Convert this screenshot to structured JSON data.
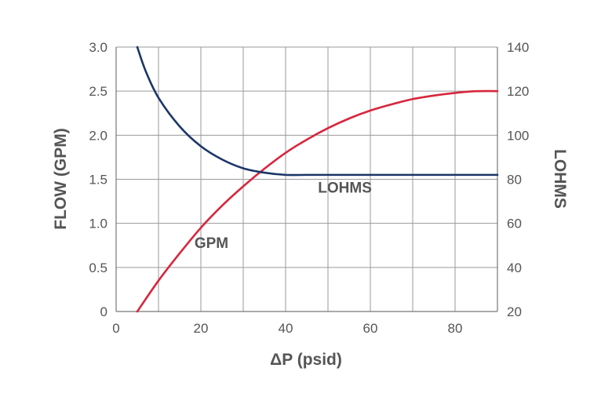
{
  "chart_data": {
    "type": "line",
    "xlabel": "ΔP (psid)",
    "ylabel": "FLOW (GPM)",
    "y2label": "LOHMS",
    "xlim": [
      0,
      90
    ],
    "ylim": [
      0,
      3.0
    ],
    "y2lim": [
      20,
      140
    ],
    "x_ticks": [
      "0",
      "20",
      "40",
      "60",
      "80"
    ],
    "y_ticks": [
      "0",
      "0.5",
      "1.0",
      "1.5",
      "2.0",
      "2.5",
      "3.0"
    ],
    "y2_ticks": [
      "20",
      "40",
      "60",
      "80",
      "100",
      "120",
      "140"
    ],
    "grid": true,
    "series": [
      {
        "name": "GPM",
        "axis": "left",
        "color": "#d7263d",
        "x": [
          5,
          10,
          15,
          20,
          25,
          30,
          35,
          40,
          45,
          50,
          55,
          60,
          65,
          70,
          75,
          80,
          85,
          90
        ],
        "y": [
          0.0,
          0.35,
          0.66,
          0.95,
          1.2,
          1.42,
          1.62,
          1.8,
          1.95,
          2.08,
          2.19,
          2.28,
          2.35,
          2.41,
          2.45,
          2.48,
          2.5,
          2.5
        ]
      },
      {
        "name": "LOHMS",
        "axis": "right",
        "color": "#1b3668",
        "x": [
          5,
          7,
          10,
          15,
          20,
          25,
          30,
          35,
          40,
          45,
          50,
          60,
          70,
          80,
          90
        ],
        "y": [
          140,
          129,
          117,
          104,
          95,
          89,
          85,
          83,
          82,
          82,
          82,
          82,
          82,
          82,
          82
        ]
      }
    ],
    "annotations": [
      {
        "text": "LOHMS",
        "x": 54,
        "y_left": 1.35
      },
      {
        "text": "GPM",
        "x": 22.5,
        "y_left": 0.72
      }
    ]
  }
}
